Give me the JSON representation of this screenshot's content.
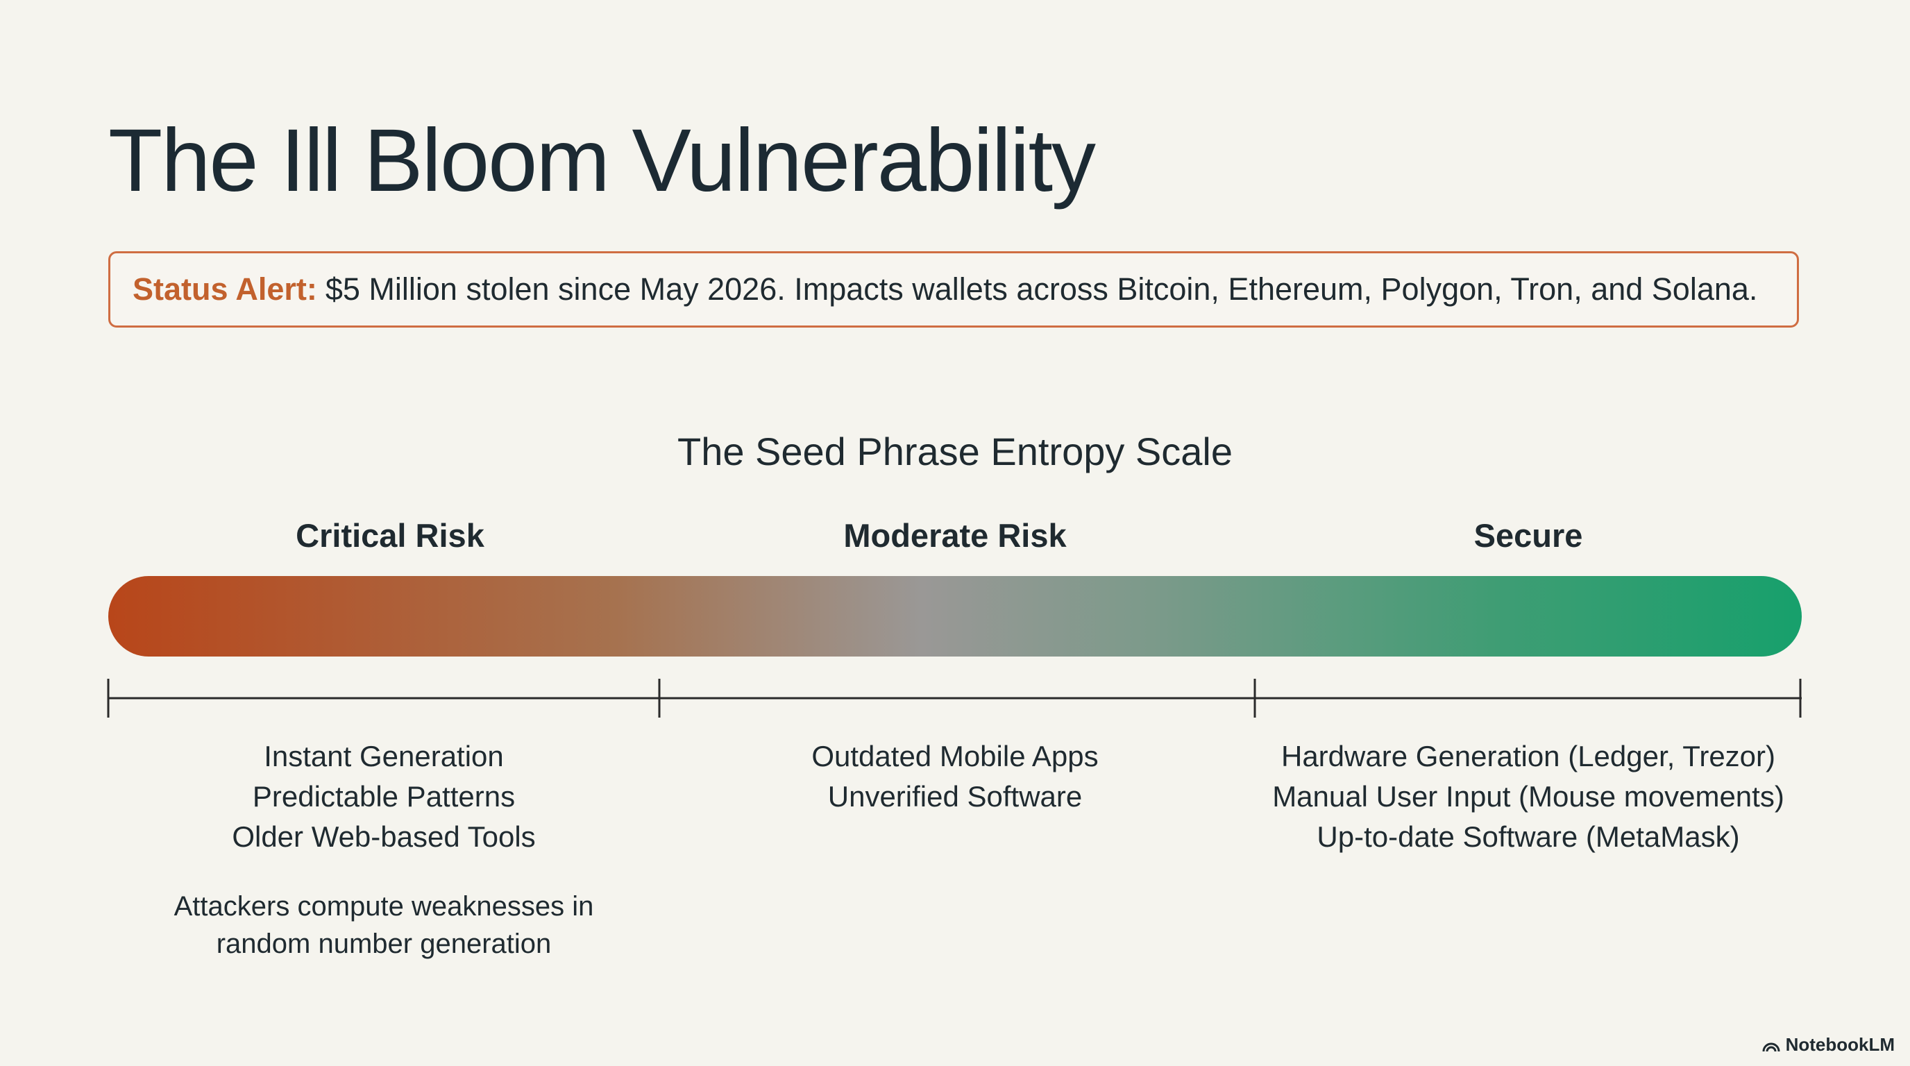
{
  "header": {
    "title": "The Ill Bloom Vulnerability"
  },
  "alert": {
    "label": "Status Alert:",
    "text": "$5 Million stolen since May 2026. Impacts wallets across Bitcoin, Ethereum, Polygon, Tron, and Solana."
  },
  "scale": {
    "title": "The Seed Phrase Entropy Scale",
    "segments": [
      {
        "label": "Critical Risk",
        "items": [
          "Instant Generation",
          "Predictable Patterns",
          "Older Web-based Tools"
        ],
        "note": "Attackers compute weaknesses in random number generation"
      },
      {
        "label": "Moderate Risk",
        "items": [
          "Outdated Mobile Apps",
          "Unverified Software"
        ]
      },
      {
        "label": "Secure",
        "items": [
          "Hardware Generation (Ledger, Trezor)",
          "Manual User Input (Mouse movements)",
          "Up-to-date Software (MetaMask)"
        ]
      }
    ]
  },
  "footer": {
    "brand": "NotebookLM"
  }
}
